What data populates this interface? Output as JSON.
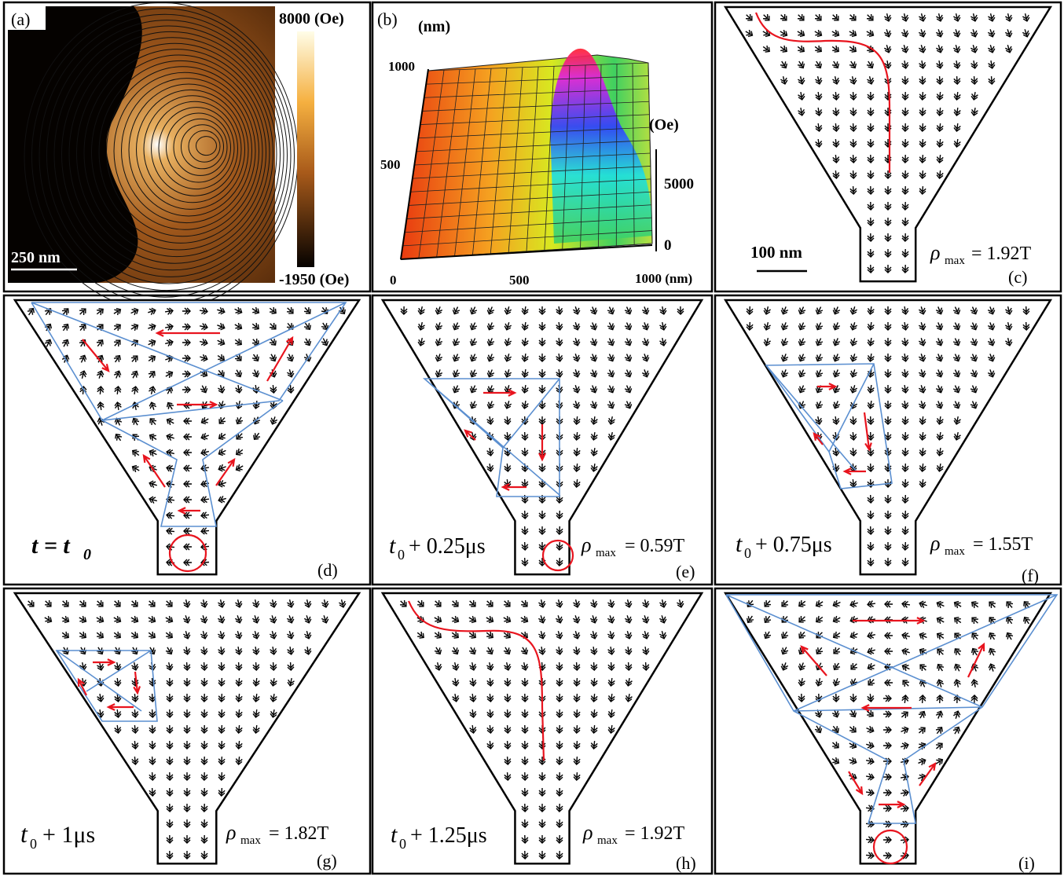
{
  "panels": [
    {
      "label": "(a)",
      "colorbar_max": "8000 (Oe)",
      "colorbar_min": "-1950 (Oe)",
      "scale": "250 nm"
    },
    {
      "label": "(b)",
      "y_unit": "(nm)",
      "y_ticks": [
        "1000",
        "500"
      ],
      "x_ticks": [
        "0",
        "500",
        "1000 (nm)"
      ],
      "z_unit": "(Oe)",
      "z_ticks": [
        "5000",
        "0"
      ]
    },
    {
      "label": "(c)",
      "scale": "100 nm",
      "rho": "ρ",
      "rho_sub": "max",
      "rho_value": "= 1.92T"
    },
    {
      "label": "(d)",
      "time": "t = t",
      "time_sub": "0"
    },
    {
      "label": "(e)",
      "time": "t",
      "time_sub": "0",
      "time_rest": "+ 0.25μs",
      "rho": "ρ",
      "rho_sub": "max",
      "rho_value": "= 0.59T"
    },
    {
      "label": "(f)",
      "time": "t",
      "time_sub": "0",
      "time_rest": "+ 0.75μs",
      "rho": "ρ",
      "rho_sub": "max",
      "rho_value": "= 1.55T"
    },
    {
      "label": "(g)",
      "time": "t",
      "time_sub": "0",
      "time_rest": "+ 1μs",
      "rho": "ρ",
      "rho_sub": "max",
      "rho_value": "= 1.82T"
    },
    {
      "label": "(h)",
      "time": "t",
      "time_sub": "0",
      "time_rest": "+ 1.25μs",
      "rho": "ρ",
      "rho_sub": "max",
      "rho_value": "= 1.92T"
    },
    {
      "label": "(i)"
    }
  ]
}
